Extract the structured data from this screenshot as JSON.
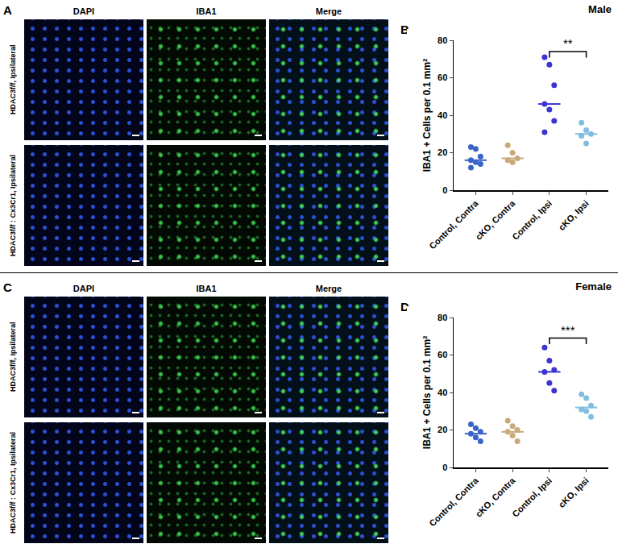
{
  "figure": {
    "sections": [
      {
        "sex": "Male",
        "image_letter": "A",
        "columns": [
          "DAPI",
          "IBA1",
          "Merge"
        ],
        "rows": [
          "HDAC3f/f, Ipsilateral",
          "HDAC3f/f : Cx3Cr1, Ipsilateral"
        ],
        "chart_letter": "B"
      },
      {
        "sex": "Female",
        "image_letter": "C",
        "columns": [
          "DAPI",
          "IBA1",
          "Merge"
        ],
        "rows": [
          "HDAC3f/f, Ipsilateral",
          "HDAC3f/f : Cx3Cr1, Ipsilateral"
        ],
        "chart_letter": "D"
      }
    ]
  },
  "chart_data": [
    {
      "type": "scatter",
      "categories": [
        "Control, Contra",
        "cKO, Contra",
        "Control, Ipsi",
        "cKO, Ipsi"
      ],
      "values": [
        [
          23,
          22,
          18,
          16,
          15,
          14,
          12
        ],
        [
          24,
          20,
          17,
          16,
          15
        ],
        [
          71,
          67,
          56,
          46,
          43,
          37,
          31
        ],
        [
          36,
          32,
          30,
          29,
          25
        ]
      ],
      "medians": [
        16,
        17,
        46,
        30
      ],
      "colors": [
        "#3a63c8",
        "#c9a97c",
        "#3b35d4",
        "#80bde0"
      ],
      "ylabel": "IBA1 + Cells per 0.1 mm²",
      "ylim": [
        0,
        80
      ],
      "yticks": [
        0,
        20,
        40,
        60,
        80
      ],
      "grid": false,
      "marker": "circle",
      "annotations": [
        {
          "text": "**",
          "from": "Control, Ipsi",
          "to": "cKO, Ipsi",
          "y": 74
        }
      ]
    },
    {
      "type": "scatter",
      "categories": [
        "Control, Contra",
        "cKO, Contra",
        "Control, Ipsi",
        "cKO, Ipsi"
      ],
      "values": [
        [
          23,
          21,
          19,
          18,
          16,
          14
        ],
        [
          25,
          22,
          20,
          19,
          17,
          14
        ],
        [
          64,
          57,
          52,
          51,
          45,
          41
        ],
        [
          39,
          37,
          33,
          31,
          30,
          27
        ]
      ],
      "medians": [
        18,
        19,
        51,
        32
      ],
      "colors": [
        "#3a63c8",
        "#c9a97c",
        "#3b35d4",
        "#80bde0"
      ],
      "ylabel": "IBA1 + Cells per 0.1 mm²",
      "ylim": [
        0,
        80
      ],
      "yticks": [
        0,
        20,
        40,
        60,
        80
      ],
      "grid": false,
      "marker": "circle",
      "annotations": [
        {
          "text": "***",
          "from": "Control, Ipsi",
          "to": "cKO, Ipsi",
          "y": 69
        }
      ]
    }
  ]
}
